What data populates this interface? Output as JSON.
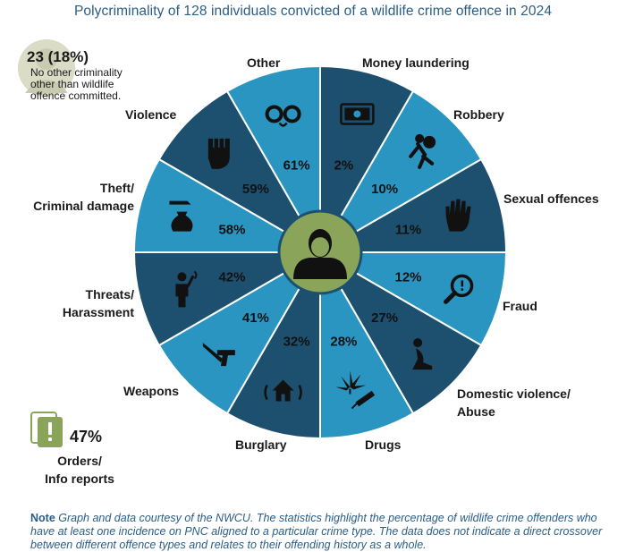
{
  "title": "Polycriminality of 128 individuals convicted of a wildlife crime offence in 2024",
  "chart_data": {
    "type": "pie",
    "title": "Polycriminality of 128 individuals convicted of a wildlife crime offence in 2024",
    "unit": "%",
    "categories": [
      "Money laundering",
      "Robbery",
      "Sexual offences",
      "Fraud",
      "Domestic violence/ Abuse",
      "Drugs",
      "Burglary",
      "Weapons",
      "Threats/ Harassment",
      "Theft/ Criminal damage",
      "Violence",
      "Other"
    ],
    "values": [
      2,
      10,
      11,
      12,
      27,
      28,
      32,
      41,
      42,
      58,
      59,
      61
    ],
    "value_labels": [
      "2%",
      "10%",
      "11%",
      "12%",
      "27%",
      "28%",
      "32%",
      "41%",
      "42%",
      "58%",
      "59%",
      "61%"
    ],
    "icons": [
      "banknote-icon",
      "thief-icon",
      "stop-hand-icon",
      "magnifier-icon",
      "kneeling-person-icon",
      "cannabis-leaf-and-syringe-icon",
      "house-alarm-icon",
      "knife-and-gun-icon",
      "person-shouting-icon",
      "hand-and-money-bag-icon",
      "fist-icon",
      "handcuffs-icon"
    ],
    "segment_colors": [
      "#1d4f6e",
      "#2a95c0"
    ],
    "center_color": "#8aa55a"
  },
  "legend_labels": {
    "money": "Money laundering",
    "robbery": "Robbery",
    "sexual": "Sexual offences",
    "fraud": "Fraud",
    "domestic": [
      "Domestic violence/",
      "Abuse"
    ],
    "drugs": "Drugs",
    "burglary": "Burglary",
    "weapons": "Weapons",
    "threats": [
      "Threats/",
      "Harassment"
    ],
    "theft": [
      "Theft/",
      "Criminal damage"
    ],
    "violence": "Violence",
    "other": "Other"
  },
  "no_criminality": {
    "value": "23 (18%)",
    "description": "No other criminality other than wildlife offence committed."
  },
  "orders": {
    "value": "47%",
    "label": [
      "Orders/",
      "Info reports"
    ],
    "icon": "exclamation-document-icon",
    "color": "#8aa55a"
  },
  "note": {
    "lead": "Note",
    "text": " Graph and data courtesy of the NWCU. The statistics highlight the percentage of wildlife crime offenders who have at least one incidence on PNC aligned to a particular crime type. The data does not indicate a direct crossover between different offence types and relates to their offending history as a whole."
  }
}
